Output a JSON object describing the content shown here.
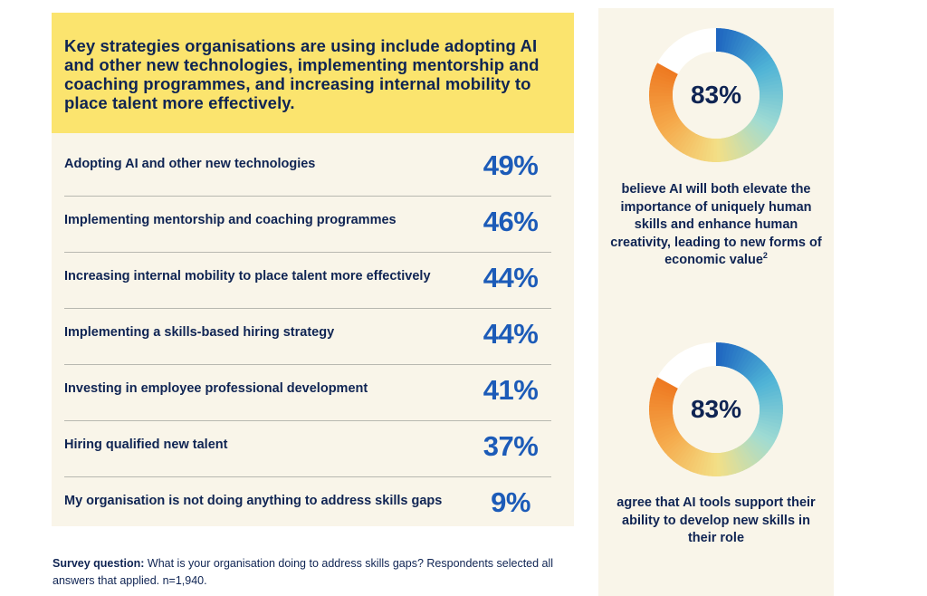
{
  "headline": "Key strategies organisations are using include adopting AI and other new technologies, implementing mentorship and coaching programmes, and increasing internal mobility to place talent more effectively.",
  "chart_data": {
    "type": "table",
    "categories": [
      "Adopting AI and other new technologies",
      "Implementing mentorship and coaching programmes",
      "Increasing internal mobility to place talent more effectively",
      "Implementing a skills-based hiring strategy",
      "Investing in employee professional development",
      "Hiring qualified new talent",
      "My organisation is not doing anything to address skills gaps"
    ],
    "values": [
      49,
      46,
      44,
      44,
      41,
      37,
      9
    ],
    "value_labels": [
      "49%",
      "46%",
      "44%",
      "44%",
      "41%",
      "37%",
      "9%"
    ],
    "unit": "%"
  },
  "stats": [
    {
      "value": 83,
      "value_label": "83%",
      "caption": "believe AI will both elevate the importance of uniquely human skills and enhance human creativity, leading to new forms of economic value",
      "footnote_mark": "2"
    },
    {
      "value": 83,
      "value_label": "83%",
      "caption": "agree that AI tools support their ability to develop new skills in their role",
      "footnote_mark": ""
    }
  ],
  "footnote": {
    "bold": "Survey question:",
    "text": " What is your organisation doing to address skills gaps? Respondents selected all answers that applied. n=1,940."
  },
  "colors": {
    "headline_bg": "#fbe46e",
    "panel_bg": "#f9f5e9",
    "value_text": "#1c5bb8",
    "text": "#0f2453",
    "gradient": [
      "#1f66c0",
      "#4fb3d6",
      "#9fdbd3",
      "#f3df86",
      "#f5a94b",
      "#ee7a22"
    ]
  }
}
